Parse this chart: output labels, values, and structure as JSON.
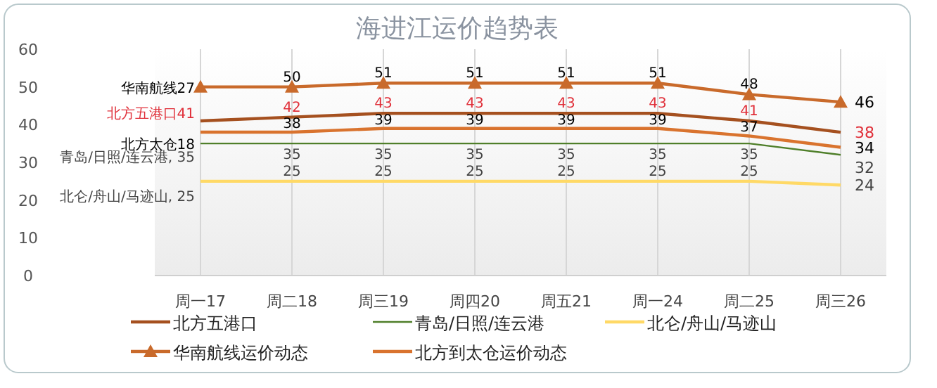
{
  "chart_data": {
    "type": "line",
    "title": "海进江运价趋势表",
    "categories": [
      "周一17",
      "周二18",
      "周三19",
      "周四20",
      "周五21",
      "周一24",
      "周二25",
      "周三26"
    ],
    "ylim": [
      0,
      60
    ],
    "yticks": [
      0,
      10,
      20,
      30,
      40,
      50,
      60
    ],
    "grid": "x",
    "legend": "bottom",
    "marker": "none",
    "series": [
      {
        "name": "北方五港口",
        "color": "#a5501f",
        "values": [
          41,
          42,
          43,
          43,
          43,
          43,
          41,
          38
        ],
        "value_labels": [
          "北方五港口41",
          "42",
          "43",
          "43",
          "43",
          "43",
          "41",
          "38"
        ]
      },
      {
        "name": "青岛/日照/连云港",
        "color": "#4f7f2a",
        "values": [
          35,
          35,
          35,
          35,
          35,
          35,
          35,
          32
        ],
        "value_labels": [
          "青岛/日照/连云港, 35",
          "35",
          "35",
          "35",
          "35",
          "35",
          "35",
          "32"
        ]
      },
      {
        "name": "北仑/舟山/马迹山",
        "color": "#ffd966",
        "values": [
          25,
          25,
          25,
          25,
          25,
          25,
          25,
          24
        ],
        "value_labels": [
          "北仑/舟山/马迹山, 25",
          "25",
          "25",
          "25",
          "25",
          "25",
          "25",
          "24"
        ]
      },
      {
        "name": "华南航线运价动态",
        "color": "#c96a2b",
        "marker": "triangle",
        "values": [
          50,
          50,
          51,
          51,
          51,
          51,
          48,
          46
        ],
        "value_labels": [
          "华南航线27",
          "50",
          "51",
          "51",
          "51",
          "51",
          "48",
          "46"
        ]
      },
      {
        "name": "北方到太仓运价动态",
        "color": "#d9732e",
        "values": [
          38,
          38,
          39,
          39,
          39,
          39,
          37,
          34
        ],
        "value_labels": [
          "北方太仓18",
          "38",
          "39",
          "39",
          "39",
          "39",
          "37",
          "34"
        ]
      }
    ]
  }
}
